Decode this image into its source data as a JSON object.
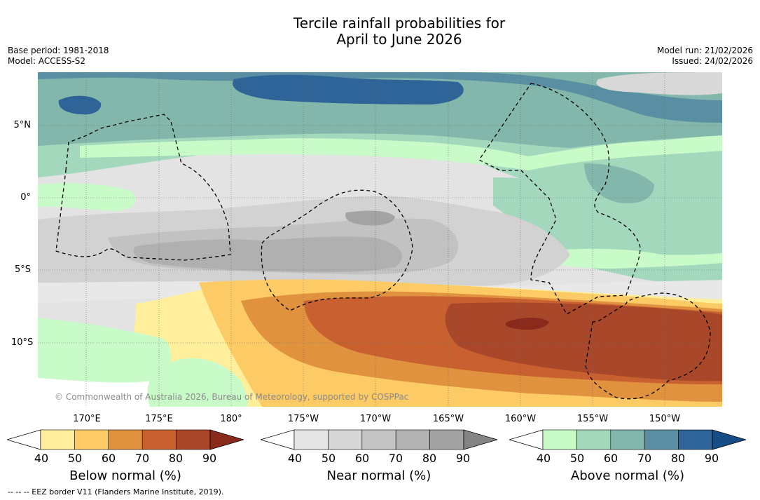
{
  "title": {
    "line1": "Tercile rainfall probabilities for",
    "line2": "April to June 2026"
  },
  "meta": {
    "base_period": "Base period: 1981-2018",
    "model": "Model: ACCESS-S2",
    "model_run": "Model run: 21/02/2026",
    "issued": "Issued: 24/02/2026"
  },
  "map": {
    "copyright": "© Commonwealth of Australia 2026, Bureau of Meteorology, supported by COSPPac",
    "latitude_labels": [
      "5°N",
      "0°",
      "5°S",
      "10°S"
    ],
    "longitude_labels": [
      "170°E",
      "175°E",
      "180°",
      "175°W",
      "170°W",
      "165°W",
      "160°W",
      "155°W",
      "150°W"
    ]
  },
  "colorbars": [
    {
      "title": "Below normal (%)",
      "ticks": [
        "40",
        "50",
        "60",
        "70",
        "80",
        "90"
      ],
      "colors": [
        "#ffffff",
        "#ffee9c",
        "#fdcb66",
        "#e0923f",
        "#c8612f",
        "#a9472a",
        "#8a2a1c"
      ]
    },
    {
      "title": "Near normal (%)",
      "ticks": [
        "40",
        "50",
        "60",
        "70",
        "80",
        "90"
      ],
      "colors": [
        "#ffffff",
        "#e5e5e5",
        "#d6d6d6",
        "#c4c4c4",
        "#b2b2b2",
        "#a2a2a2",
        "#848484"
      ]
    },
    {
      "title": "Above normal (%)",
      "ticks": [
        "40",
        "50",
        "60",
        "70",
        "80",
        "90"
      ],
      "colors": [
        "#ffffff",
        "#c8fbc8",
        "#a4d8bd",
        "#83b7ac",
        "#5a8fa3",
        "#2f6498",
        "#174d86"
      ]
    }
  ],
  "legend_footer": "--  --  -- EEZ border V11 (Flanders Marine Institute, 2019)."
}
